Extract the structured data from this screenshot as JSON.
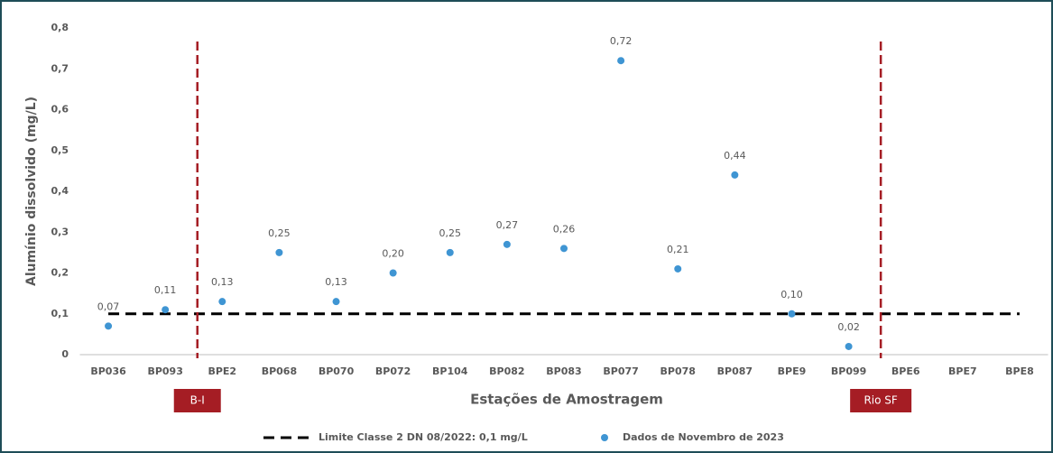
{
  "chart_data": {
    "type": "scatter",
    "y_label": "Alumínio dissolvido (mg/L)",
    "x_label": "Estações de Amostragem",
    "categories": [
      "BP036",
      "BP093",
      "BPE2",
      "BP068",
      "BP070",
      "BP072",
      "BP104",
      "BP082",
      "BP083",
      "BP077",
      "BP078",
      "BP087",
      "BPE9",
      "BP099",
      "BPE6",
      "BPE7",
      "BPE8"
    ],
    "series": [
      {
        "name": "Dados de Novembro de 2023",
        "color": "#3f95d3",
        "values": [
          0.07,
          0.11,
          0.13,
          0.25,
          0.13,
          0.2,
          0.25,
          0.27,
          0.26,
          0.72,
          0.21,
          0.44,
          0.1,
          0.02,
          null,
          null,
          null
        ],
        "value_labels": [
          "0,07",
          "0,11",
          "0,13",
          "0,25",
          "0,13",
          "0,20",
          "0,25",
          "0,27",
          "0,26",
          "0,72",
          "0,21",
          "0,44",
          "0,10",
          "0,02",
          null,
          null,
          null
        ]
      }
    ],
    "reference_line": {
      "name": "Limite Classe 2 DN 08/2022: 0,1 mg/L",
      "value": 0.1,
      "color": "#000000"
    },
    "regions": [
      {
        "label": "B-I",
        "color": "#a51d24"
      },
      {
        "label": "Rio SF",
        "color": "#a51d24"
      }
    ],
    "ylim": [
      0,
      0.8
    ],
    "yticks": [
      0,
      {
        "value": 0.1,
        "label": "0,1"
      },
      {
        "value": 0.2,
        "label": "0,2"
      },
      {
        "value": 0.3,
        "label": "0,3"
      },
      {
        "value": 0.4,
        "label": "0,4"
      },
      {
        "value": 0.5,
        "label": "0,5"
      },
      {
        "value": 0.6,
        "label": "0,6"
      },
      {
        "value": 0.7,
        "label": "0,7"
      },
      {
        "value": 0.8,
        "label": "0,8"
      }
    ],
    "grid": false
  }
}
